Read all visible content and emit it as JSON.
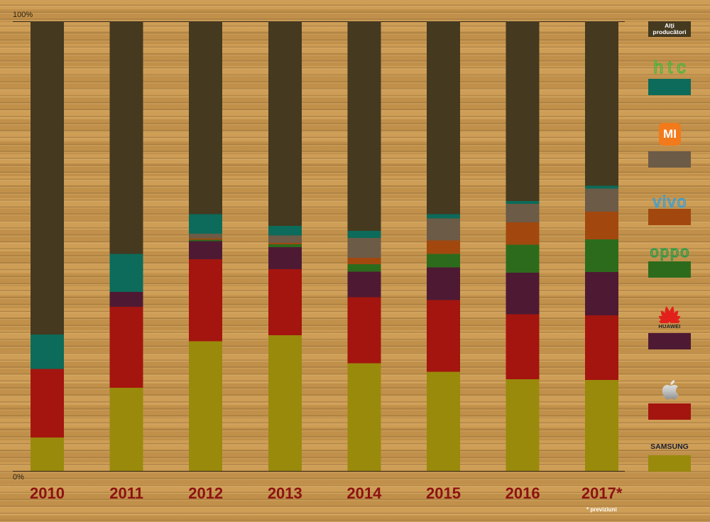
{
  "chart_data": {
    "type": "bar",
    "stacked": true,
    "percent": true,
    "categories": [
      "2010",
      "2011",
      "2012",
      "2013",
      "2014",
      "2015",
      "2016",
      "2017*"
    ],
    "ylim": [
      0,
      100
    ],
    "ytick_labels": [
      "0%",
      "100%"
    ],
    "grid": false,
    "legend": "right",
    "footnote": "* previziuni",
    "series": [
      {
        "name": "SAMSUNG",
        "color": "#998a0c",
        "values": [
          7.4,
          18.5,
          28.8,
          30.2,
          23.9,
          22.0,
          20.4,
          20.2
        ]
      },
      {
        "icon": "apple-logo-icon",
        "color": "#a4150f",
        "values": [
          15.3,
          18.0,
          18.3,
          14.7,
          14.7,
          16.0,
          14.4,
          14.4
        ]
      },
      {
        "name": "HUAWEI",
        "icon": "huawei-logo-icon",
        "color": "#4e1a33",
        "values": [
          0,
          3.3,
          4.0,
          4.9,
          5.7,
          7.3,
          9.3,
          9.6
        ]
      },
      {
        "name": "oppo",
        "color": "#2d6b1c",
        "values": [
          0,
          0,
          0.3,
          0.6,
          1.7,
          3.0,
          6.2,
          7.3
        ]
      },
      {
        "name": "vivo",
        "color": "#a2480f",
        "values": [
          0,
          0,
          0.3,
          0.3,
          1.4,
          3.0,
          5.0,
          6.2
        ]
      },
      {
        "name": "MI",
        "icon": "xiaomi-logo-icon",
        "color": "#6c5b47",
        "values": [
          0,
          0,
          1.1,
          1.7,
          4.4,
          4.9,
          4.1,
          5.1
        ]
      },
      {
        "name": "htc",
        "color": "#0c6b5a",
        "values": [
          7.6,
          8.5,
          4.3,
          2.1,
          1.6,
          0.9,
          0.6,
          0.6
        ]
      },
      {
        "name": "Alți producători",
        "color": "#45391f",
        "values": [
          69.7,
          51.7,
          42.9,
          45.5,
          46.6,
          42.9,
          40.0,
          36.6
        ]
      }
    ]
  }
}
